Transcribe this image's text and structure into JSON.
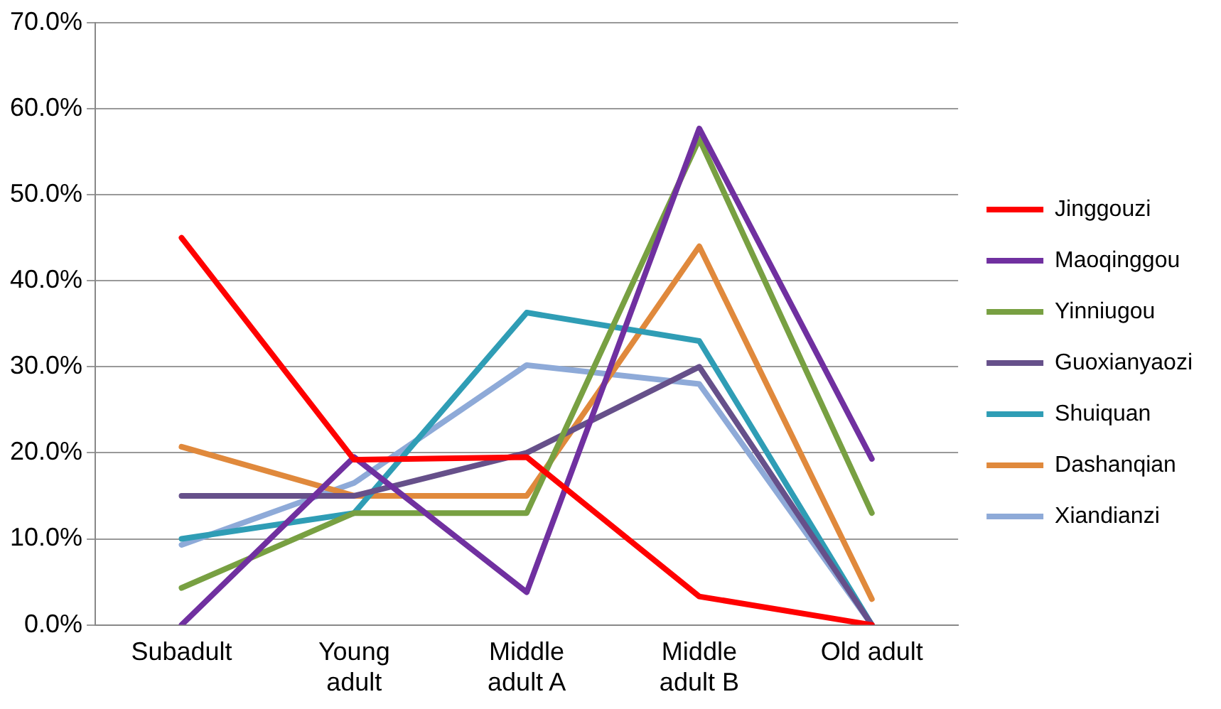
{
  "chart_data": {
    "type": "line",
    "categories": [
      "Subadult",
      "Young adult",
      "Middle adult A",
      "Middle adult B",
      "Old adult"
    ],
    "series": [
      {
        "name": "Jinggouzi",
        "color": "#ff0000",
        "values": [
          45,
          19.2,
          19.5,
          3.3,
          0
        ]
      },
      {
        "name": "Maoqinggou",
        "color": "#7030a0",
        "values": [
          0,
          19.5,
          3.8,
          57.7,
          19.3
        ]
      },
      {
        "name": "Yinniugou",
        "color": "#78a042",
        "values": [
          4.3,
          13,
          13,
          56.5,
          13
        ]
      },
      {
        "name": "Guoxianyaozi",
        "color": "#66508a",
        "values": [
          15,
          15,
          20,
          30,
          0
        ]
      },
      {
        "name": "Shuiquan",
        "color": "#2f9db5",
        "values": [
          10,
          13,
          36.3,
          33,
          0
        ]
      },
      {
        "name": "Dashanqian",
        "color": "#e0893c",
        "values": [
          20.7,
          15,
          15,
          44,
          3
        ]
      },
      {
        "name": "Xiandianzi",
        "color": "#8eaad8",
        "values": [
          9.3,
          16.5,
          30.2,
          28,
          0
        ]
      }
    ],
    "ylim": [
      0,
      70
    ],
    "yticks": [
      {
        "value": 0,
        "label": "0.0%"
      },
      {
        "value": 10,
        "label": "10.0%"
      },
      {
        "value": 20,
        "label": "20.0%"
      },
      {
        "value": 30,
        "label": "30.0%"
      },
      {
        "value": 40,
        "label": "40.0%"
      },
      {
        "value": 50,
        "label": "50.0%"
      },
      {
        "value": 60,
        "label": "60.0%"
      },
      {
        "value": 70,
        "label": "70.0%"
      }
    ],
    "grid": "y",
    "legend": "right",
    "marker": "none",
    "line_style": "solid"
  }
}
